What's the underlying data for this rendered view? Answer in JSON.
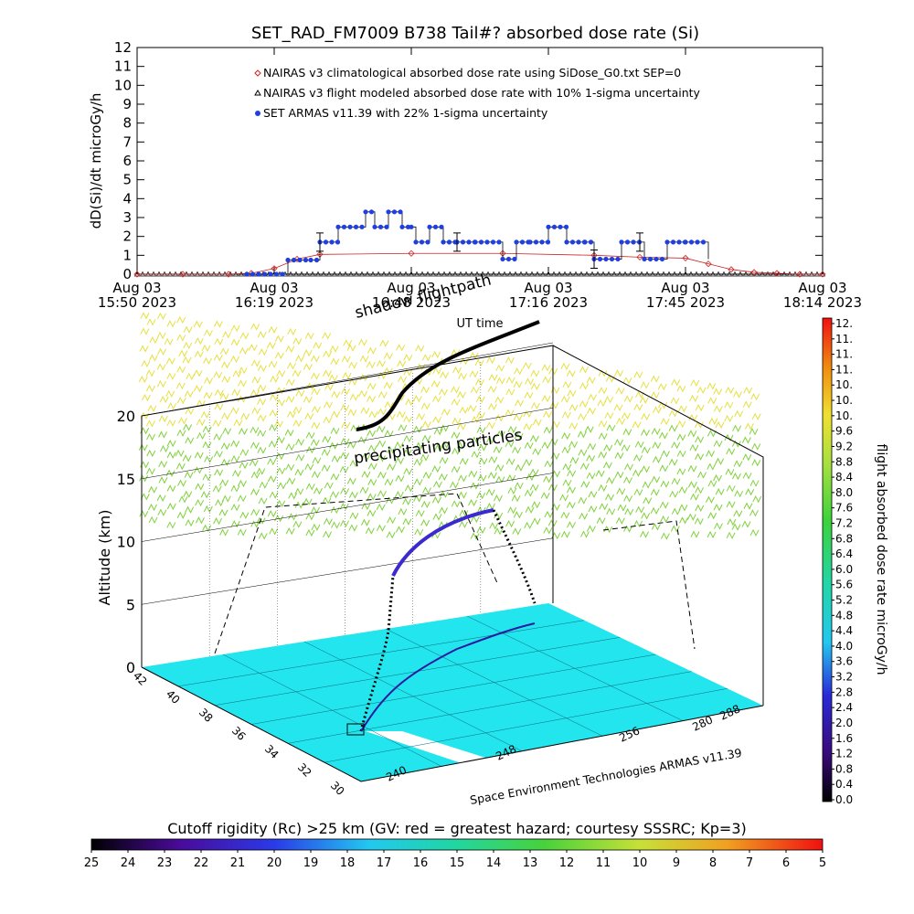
{
  "title": "SET_RAD_FM7009  B738 Tail#? absorbed dose rate (Si)",
  "chart_data": [
    {
      "type": "line",
      "ylabel": "dD(Si)/dt microGy/h",
      "xlabel": "UT time",
      "ylim": [
        0,
        12
      ],
      "y_ticks": [
        "0",
        "1",
        "2",
        "3",
        "4",
        "5",
        "6",
        "7",
        "8",
        "9",
        "10",
        "11",
        "12"
      ],
      "x_ticks": [
        {
          "date": "Aug 03",
          "time": "15:50 2023"
        },
        {
          "date": "Aug 03",
          "time": "16:19 2023"
        },
        {
          "date": "Aug 03",
          "time": "16:48 2023"
        },
        {
          "date": "Aug 03",
          "time": "17:16 2023"
        },
        {
          "date": "Aug 03",
          "time": "17:45 2023"
        },
        {
          "date": "Aug 03",
          "time": "18:14 2023"
        }
      ],
      "legend": [
        {
          "label": "NAIRAS v3 climatological absorbed dose rate using SiDose_G0.txt SEP=0",
          "marker": "diamond",
          "color": "#cc2222"
        },
        {
          "label": "NAIRAS v3 flight modeled absorbed dose rate with 10% 1-sigma uncertainty",
          "marker": "triangle",
          "color": "#000000"
        },
        {
          "label": "SET ARMAS v11.39 with 22% 1-sigma uncertainty",
          "marker": "dot",
          "color": "#1f3fe0"
        }
      ],
      "series": [
        {
          "name": "NAIRAS v3 climatological absorbed dose rate using SiDose_G0.txt SEP=0",
          "x_minutes": [
            0,
            10,
            20,
            25,
            30,
            35,
            40,
            60,
            80,
            100,
            110,
            120,
            125,
            130,
            135,
            140,
            145,
            150
          ],
          "values": [
            0,
            0,
            0,
            0.05,
            0.3,
            0.8,
            1.05,
            1.1,
            1.1,
            1.0,
            0.9,
            0.85,
            0.55,
            0.25,
            0.1,
            0.05,
            0,
            0
          ]
        },
        {
          "name": "NAIRAS v3 flight modeled absorbed dose rate with 10% 1-sigma uncertainty",
          "x_minutes": [
            0,
            150
          ],
          "values": [
            0,
            0
          ]
        },
        {
          "name": "SET ARMAS v11.39 with 22% 1-sigma uncertainty",
          "x_minutes": [
            24,
            33,
            38,
            40,
            44,
            50,
            52,
            55,
            58,
            60,
            61,
            64,
            67,
            70,
            74,
            80,
            83,
            86,
            90,
            94,
            98,
            100,
            106,
            111,
            116,
            120,
            125
          ],
          "values": [
            0,
            0.75,
            0.75,
            1.7,
            2.5,
            3.3,
            2.5,
            3.3,
            2.5,
            2.5,
            1.7,
            2.5,
            1.7,
            1.7,
            1.7,
            0.8,
            1.7,
            1.7,
            2.5,
            1.7,
            1.7,
            0.8,
            1.7,
            0.8,
            1.7,
            1.7,
            0.8
          ]
        }
      ]
    },
    {
      "type": "scatter",
      "ylabel": "Altitude (km)",
      "zlim": [
        0,
        20
      ],
      "z_ticks": [
        "0",
        "5",
        "10",
        "15",
        "20"
      ],
      "lat_ticks": [
        "42",
        "40",
        "38",
        "36",
        "34",
        "32",
        "30"
      ],
      "lon_ticks": [
        "240",
        "248",
        "256",
        "280",
        "288"
      ],
      "annotations": [
        "shadow flightpath",
        "precipitating particles"
      ],
      "credit": "Space Environment Technologies ARMAS v11.39"
    },
    {
      "type": "heatmap",
      "label": "flight absorbed dose rate microGy/h",
      "ticks": [
        "12.",
        "11.",
        "11.",
        "11.",
        "10.",
        "10.",
        "10.",
        "9.6",
        "9.2",
        "8.8",
        "8.4",
        "8.0",
        "7.6",
        "7.2",
        "6.8",
        "6.4",
        "6.0",
        "5.6",
        "5.2",
        "4.8",
        "4.4",
        "4.0",
        "3.6",
        "3.2",
        "2.8",
        "2.4",
        "2.0",
        "1.6",
        "1.2",
        "0.8",
        "0.4",
        "0.0"
      ]
    },
    {
      "type": "heatmap",
      "label": "Cutoff rigidity (Rc) >25 km (GV: red = greatest hazard; courtesy SSSRC; Kp=3)",
      "ticks": [
        "25",
        "24",
        "23",
        "22",
        "21",
        "20",
        "19",
        "18",
        "17",
        "16",
        "15",
        "14",
        "13",
        "12",
        "11",
        "10",
        "9",
        "8",
        "7",
        "6",
        "5"
      ]
    }
  ],
  "colors": {
    "armas": "#1f3fe0",
    "nairas_clim": "#cc2222",
    "ground": "#22e5ee",
    "precip_high": "#e6e040",
    "precip_low": "#7fd23a"
  }
}
